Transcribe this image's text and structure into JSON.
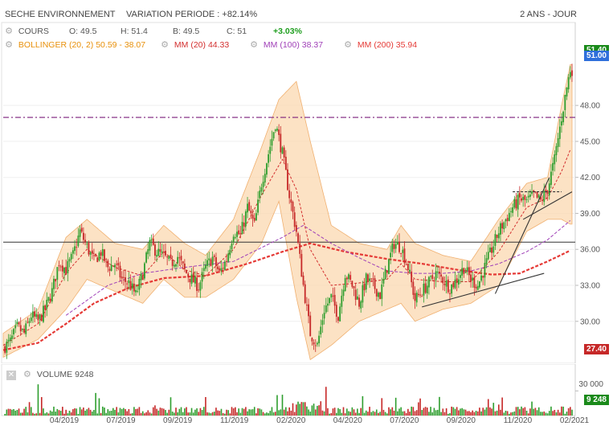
{
  "header": {
    "title": "SECHE ENVIRONNEMENT",
    "variation": "VARIATION PERIODE : +82.14%",
    "period": "2 ANS - JOUR"
  },
  "legend": {
    "cours": {
      "label": "COURS",
      "open": "O: 49.5",
      "high": "H: 51.4",
      "low": "B: 49.5",
      "close": "C: 51",
      "change": "+3.03%"
    },
    "bollinger": {
      "label": "BOLLINGER (20, 2)",
      "value": "50.59 - 38.07",
      "color": "#e8900a"
    },
    "mm20": {
      "label": "MM (20)",
      "value": "44.33",
      "color": "#d32f2f"
    },
    "mm100": {
      "label": "MM (100)",
      "value": "38.37",
      "color": "#a040b8"
    },
    "mm200": {
      "label": "MM (200)",
      "value": "35.94",
      "color": "#e53935"
    }
  },
  "price_tags": {
    "bollinger_upper": "51.40",
    "last": "51.00",
    "low": "27.40"
  },
  "volume_panel": {
    "label": "VOLUME",
    "value": "9248",
    "axis_max": "30 000",
    "last_tag": "9 248"
  },
  "colors": {
    "up": "#2e9e2e",
    "down": "#c62828",
    "band_fill": "#fbd8b0",
    "band_stroke": "#f0b070",
    "resistance": "#7b1f7b"
  },
  "chart_data": {
    "type": "candlestick",
    "title": "SECHE ENVIRONNEMENT",
    "x_ticks": [
      "04/2019",
      "07/2019",
      "09/2019",
      "11/2019",
      "02/2020",
      "04/2020",
      "07/2020",
      "09/2020",
      "11/2020",
      "02/2021"
    ],
    "y_ticks": [
      30.0,
      33.0,
      36.0,
      39.0,
      42.0,
      45.0,
      48.0
    ],
    "ylim": [
      26.5,
      52.5
    ],
    "horizontal_lines": [
      {
        "name": "resistance",
        "value": 47.0,
        "style": "dash-dot"
      },
      {
        "name": "support",
        "value": 36.6,
        "style": "solid"
      }
    ],
    "close_series": [
      {
        "t": 0,
        "v": 27.8
      },
      {
        "t": 4,
        "v": 28.3
      },
      {
        "t": 8,
        "v": 29.5
      },
      {
        "t": 12,
        "v": 29.0
      },
      {
        "t": 16,
        "v": 30.5
      },
      {
        "t": 20,
        "v": 30.0
      },
      {
        "t": 24,
        "v": 31.0
      },
      {
        "t": 28,
        "v": 32.5
      },
      {
        "t": 32,
        "v": 35.0
      },
      {
        "t": 36,
        "v": 34.3
      },
      {
        "t": 40,
        "v": 35.5
      },
      {
        "t": 44,
        "v": 37.5
      },
      {
        "t": 48,
        "v": 36.2
      },
      {
        "t": 52,
        "v": 35.0
      },
      {
        "t": 56,
        "v": 35.8
      },
      {
        "t": 60,
        "v": 34.5
      },
      {
        "t": 64,
        "v": 34.8
      },
      {
        "t": 68,
        "v": 33.5
      },
      {
        "t": 72,
        "v": 33.2
      },
      {
        "t": 76,
        "v": 32.2
      },
      {
        "t": 80,
        "v": 34.0
      },
      {
        "t": 84,
        "v": 36.5
      },
      {
        "t": 88,
        "v": 35.8
      },
      {
        "t": 92,
        "v": 35.4
      },
      {
        "t": 96,
        "v": 34.8
      },
      {
        "t": 100,
        "v": 35.4
      },
      {
        "t": 104,
        "v": 34.2
      },
      {
        "t": 108,
        "v": 33.5
      },
      {
        "t": 112,
        "v": 32.9
      },
      {
        "t": 116,
        "v": 34.5
      },
      {
        "t": 120,
        "v": 35.3
      },
      {
        "t": 124,
        "v": 34.0
      },
      {
        "t": 128,
        "v": 35.2
      },
      {
        "t": 132,
        "v": 37.5
      },
      {
        "t": 136,
        "v": 37.2
      },
      {
        "t": 140,
        "v": 39.5
      },
      {
        "t": 144,
        "v": 38.0
      },
      {
        "t": 148,
        "v": 41.5
      },
      {
        "t": 152,
        "v": 44.0
      },
      {
        "t": 156,
        "v": 46.5
      },
      {
        "t": 160,
        "v": 44.0
      },
      {
        "t": 164,
        "v": 40.5
      },
      {
        "t": 168,
        "v": 37.5
      },
      {
        "t": 172,
        "v": 33.0
      },
      {
        "t": 176,
        "v": 29.0
      },
      {
        "t": 180,
        "v": 28.0
      },
      {
        "t": 184,
        "v": 31.0
      },
      {
        "t": 188,
        "v": 32.0
      },
      {
        "t": 192,
        "v": 30.5
      },
      {
        "t": 196,
        "v": 34.0
      },
      {
        "t": 200,
        "v": 33.0
      },
      {
        "t": 204,
        "v": 31.5
      },
      {
        "t": 208,
        "v": 33.5
      },
      {
        "t": 212,
        "v": 33.0
      },
      {
        "t": 216,
        "v": 32.2
      },
      {
        "t": 220,
        "v": 34.5
      },
      {
        "t": 224,
        "v": 36.5
      },
      {
        "t": 228,
        "v": 36.2
      },
      {
        "t": 232,
        "v": 34.5
      },
      {
        "t": 236,
        "v": 31.8
      },
      {
        "t": 240,
        "v": 32.5
      },
      {
        "t": 244,
        "v": 33.2
      },
      {
        "t": 248,
        "v": 34.0
      },
      {
        "t": 252,
        "v": 33.5
      },
      {
        "t": 256,
        "v": 32.8
      },
      {
        "t": 260,
        "v": 33.5
      },
      {
        "t": 264,
        "v": 34.5
      },
      {
        "t": 268,
        "v": 33.5
      },
      {
        "t": 272,
        "v": 33.0
      },
      {
        "t": 276,
        "v": 34.5
      },
      {
        "t": 280,
        "v": 36.0
      },
      {
        "t": 284,
        "v": 37.5
      },
      {
        "t": 288,
        "v": 38.5
      },
      {
        "t": 292,
        "v": 39.5
      },
      {
        "t": 296,
        "v": 40.2
      },
      {
        "t": 300,
        "v": 40.0
      },
      {
        "t": 304,
        "v": 40.5
      },
      {
        "t": 308,
        "v": 40.0
      },
      {
        "t": 312,
        "v": 41.0
      },
      {
        "t": 316,
        "v": 43.5
      },
      {
        "t": 320,
        "v": 47.0
      },
      {
        "t": 323,
        "v": 49.5
      },
      {
        "t": 325,
        "v": 51.0
      }
    ],
    "bollinger_upper": [
      {
        "t": 0,
        "v": 29.0
      },
      {
        "t": 20,
        "v": 31.0
      },
      {
        "t": 36,
        "v": 37.0
      },
      {
        "t": 48,
        "v": 38.5
      },
      {
        "t": 64,
        "v": 36.5
      },
      {
        "t": 80,
        "v": 36.0
      },
      {
        "t": 92,
        "v": 38.0
      },
      {
        "t": 104,
        "v": 36.5
      },
      {
        "t": 116,
        "v": 35.5
      },
      {
        "t": 132,
        "v": 38.5
      },
      {
        "t": 148,
        "v": 44.5
      },
      {
        "t": 158,
        "v": 48.5
      },
      {
        "t": 168,
        "v": 50.0
      },
      {
        "t": 176,
        "v": 45.0
      },
      {
        "t": 188,
        "v": 38.0
      },
      {
        "t": 204,
        "v": 36.5
      },
      {
        "t": 220,
        "v": 36.0
      },
      {
        "t": 228,
        "v": 38.0
      },
      {
        "t": 236,
        "v": 36.5
      },
      {
        "t": 252,
        "v": 35.5
      },
      {
        "t": 268,
        "v": 35.0
      },
      {
        "t": 284,
        "v": 38.5
      },
      {
        "t": 300,
        "v": 41.5
      },
      {
        "t": 312,
        "v": 42.0
      },
      {
        "t": 320,
        "v": 48.0
      },
      {
        "t": 325,
        "v": 51.4
      }
    ],
    "bollinger_lower": [
      {
        "t": 0,
        "v": 27.0
      },
      {
        "t": 20,
        "v": 28.5
      },
      {
        "t": 36,
        "v": 31.0
      },
      {
        "t": 48,
        "v": 33.5
      },
      {
        "t": 64,
        "v": 32.5
      },
      {
        "t": 80,
        "v": 31.5
      },
      {
        "t": 92,
        "v": 33.5
      },
      {
        "t": 104,
        "v": 32.0
      },
      {
        "t": 116,
        "v": 32.0
      },
      {
        "t": 132,
        "v": 33.5
      },
      {
        "t": 148,
        "v": 36.5
      },
      {
        "t": 158,
        "v": 40.0
      },
      {
        "t": 168,
        "v": 32.0
      },
      {
        "t": 176,
        "v": 26.8
      },
      {
        "t": 188,
        "v": 28.0
      },
      {
        "t": 204,
        "v": 30.0
      },
      {
        "t": 220,
        "v": 31.0
      },
      {
        "t": 228,
        "v": 31.5
      },
      {
        "t": 236,
        "v": 30.0
      },
      {
        "t": 252,
        "v": 31.0
      },
      {
        "t": 268,
        "v": 31.5
      },
      {
        "t": 284,
        "v": 33.0
      },
      {
        "t": 300,
        "v": 37.5
      },
      {
        "t": 312,
        "v": 38.5
      },
      {
        "t": 320,
        "v": 38.5
      },
      {
        "t": 325,
        "v": 38.1
      }
    ],
    "mm20": [
      {
        "t": 0,
        "v": 28.0
      },
      {
        "t": 20,
        "v": 29.8
      },
      {
        "t": 36,
        "v": 34.0
      },
      {
        "t": 48,
        "v": 36.0
      },
      {
        "t": 64,
        "v": 34.5
      },
      {
        "t": 80,
        "v": 33.8
      },
      {
        "t": 92,
        "v": 35.8
      },
      {
        "t": 104,
        "v": 34.3
      },
      {
        "t": 116,
        "v": 33.8
      },
      {
        "t": 132,
        "v": 36.0
      },
      {
        "t": 148,
        "v": 40.5
      },
      {
        "t": 160,
        "v": 43.5
      },
      {
        "t": 168,
        "v": 41.0
      },
      {
        "t": 176,
        "v": 36.0
      },
      {
        "t": 188,
        "v": 33.0
      },
      {
        "t": 204,
        "v": 33.2
      },
      {
        "t": 220,
        "v": 33.5
      },
      {
        "t": 228,
        "v": 34.8
      },
      {
        "t": 236,
        "v": 33.5
      },
      {
        "t": 252,
        "v": 33.3
      },
      {
        "t": 268,
        "v": 33.3
      },
      {
        "t": 284,
        "v": 35.8
      },
      {
        "t": 300,
        "v": 39.5
      },
      {
        "t": 312,
        "v": 40.3
      },
      {
        "t": 320,
        "v": 42.5
      },
      {
        "t": 325,
        "v": 44.3
      }
    ],
    "mm100": [
      {
        "t": 36,
        "v": 30.5
      },
      {
        "t": 60,
        "v": 33.0
      },
      {
        "t": 80,
        "v": 34.0
      },
      {
        "t": 104,
        "v": 34.5
      },
      {
        "t": 132,
        "v": 35.0
      },
      {
        "t": 160,
        "v": 37.0
      },
      {
        "t": 172,
        "v": 38.0
      },
      {
        "t": 188,
        "v": 36.5
      },
      {
        "t": 204,
        "v": 35.3
      },
      {
        "t": 220,
        "v": 34.2
      },
      {
        "t": 236,
        "v": 34.0
      },
      {
        "t": 252,
        "v": 34.0
      },
      {
        "t": 268,
        "v": 34.2
      },
      {
        "t": 284,
        "v": 34.8
      },
      {
        "t": 300,
        "v": 35.8
      },
      {
        "t": 312,
        "v": 36.8
      },
      {
        "t": 325,
        "v": 38.4
      }
    ],
    "mm200": [
      {
        "t": 0,
        "v": 27.6
      },
      {
        "t": 20,
        "v": 28.2
      },
      {
        "t": 36,
        "v": 29.8
      },
      {
        "t": 52,
        "v": 31.5
      },
      {
        "t": 72,
        "v": 32.8
      },
      {
        "t": 92,
        "v": 33.6
      },
      {
        "t": 116,
        "v": 33.8
      },
      {
        "t": 140,
        "v": 34.8
      },
      {
        "t": 160,
        "v": 35.8
      },
      {
        "t": 176,
        "v": 36.5
      },
      {
        "t": 196,
        "v": 35.8
      },
      {
        "t": 220,
        "v": 35.2
      },
      {
        "t": 240,
        "v": 34.8
      },
      {
        "t": 260,
        "v": 34.3
      },
      {
        "t": 280,
        "v": 33.9
      },
      {
        "t": 296,
        "v": 34.0
      },
      {
        "t": 312,
        "v": 35.0
      },
      {
        "t": 325,
        "v": 35.9
      }
    ],
    "trendlines": [
      {
        "from": {
          "t": 240,
          "v": 31.2
        },
        "to": {
          "t": 310,
          "v": 34.0
        }
      },
      {
        "from": {
          "t": 282,
          "v": 32.3
        },
        "to": {
          "t": 313,
          "v": 42.0
        }
      },
      {
        "from": {
          "t": 298,
          "v": 38.5
        },
        "to": {
          "t": 326,
          "v": 40.8
        }
      },
      {
        "from": {
          "t": 292,
          "v": 40.8
        },
        "to": {
          "t": 320,
          "v": 40.8
        },
        "style": "dashed"
      }
    ],
    "volume": {
      "ylim": [
        0,
        45000
      ],
      "y_ticks": [
        30000
      ],
      "last": 9248
    }
  }
}
